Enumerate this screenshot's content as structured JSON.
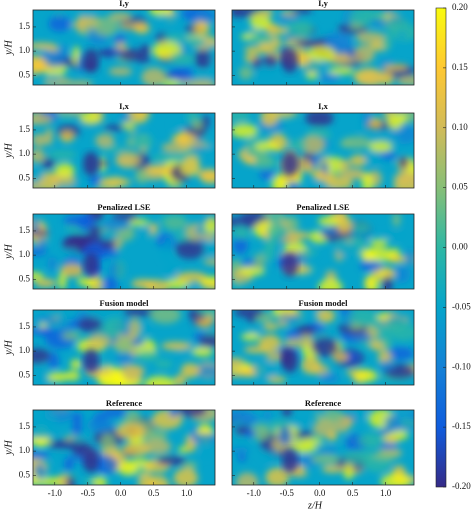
{
  "chart_data": {
    "type": "heatmap",
    "panels": [
      {
        "title": "I,y"
      },
      {
        "title": "I,y"
      },
      {
        "title": "I,x"
      },
      {
        "title": "I,x"
      },
      {
        "title": "Penalized LSE"
      },
      {
        "title": "Penalized LSE"
      },
      {
        "title": "Fusion model"
      },
      {
        "title": "Fusion model"
      },
      {
        "title": "Reference"
      },
      {
        "title": "Reference"
      }
    ],
    "xlabel": "z/H",
    "ylabel": "y/H",
    "xlim": [
      -1.33,
      1.43
    ],
    "ylim": [
      0.3,
      1.85
    ],
    "xticks": [
      {
        "value": -1,
        "label": "-1.0"
      },
      -0.5,
      {
        "value": 0,
        "label": "0.0"
      },
      0.5,
      {
        "value": 1,
        "label": "1.0"
      }
    ],
    "yticks": [
      0.5,
      {
        "value": 1,
        "label": "1.0"
      },
      1.5
    ],
    "colormap": [
      "#352a87",
      "#0f5cdd",
      "#1481d6",
      "#06a4ca",
      "#2eb7a4",
      "#87bf77",
      "#d1bb59",
      "#fec832",
      "#f9fb0e"
    ],
    "colorbar": {
      "lim": [
        -0.2,
        0.2
      ],
      "ticks": [
        {
          "value": 0.2,
          "label": "0.20"
        },
        0.15,
        {
          "value": 0.1,
          "label": "0.10"
        },
        0.05,
        {
          "value": 0,
          "label": "0.00"
        },
        -0.05,
        {
          "value": -0.1,
          "label": "-0.10"
        },
        -0.15,
        {
          "value": -0.2,
          "label": "-0.20"
        }
      ]
    }
  }
}
